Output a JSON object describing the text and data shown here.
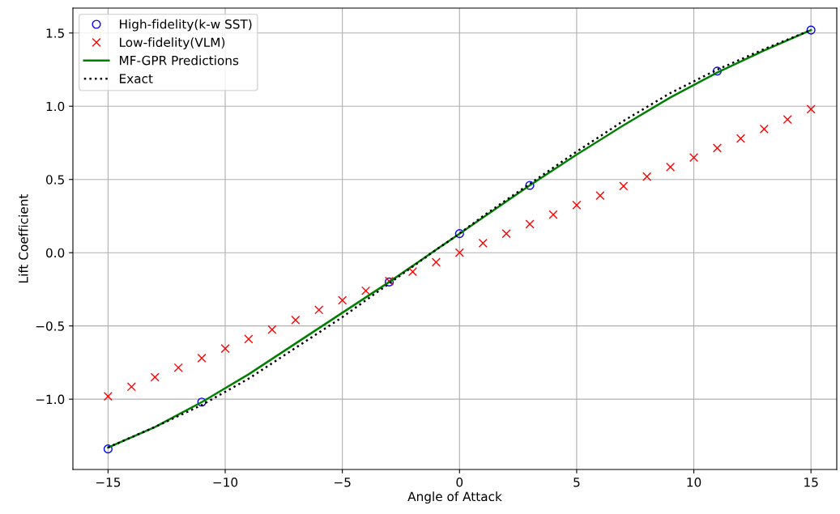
{
  "chart_data": {
    "type": "scatter",
    "xlabel": "Angle of Attack",
    "ylabel": "Lift Coefficient",
    "xlim": [
      -16.5,
      16.1
    ],
    "ylim": [
      -1.48,
      1.67
    ],
    "xticks": [
      {
        "value": -15,
        "label": "−15"
      },
      {
        "value": -10,
        "label": "−10"
      },
      {
        "value": -5,
        "label": "−5"
      },
      0,
      5,
      10,
      15
    ],
    "yticks": [
      {
        "value": -1.0,
        "label": "−1.0"
      },
      {
        "value": -0.5,
        "label": "−0.5"
      },
      {
        "value": 0.0,
        "label": "0.0"
      },
      {
        "value": 0.5,
        "label": "0.5"
      },
      {
        "value": 1.0,
        "label": "1.0"
      },
      {
        "value": 1.5,
        "label": "1.5"
      }
    ],
    "grid": true,
    "legend": "top left",
    "series": [
      {
        "name": "High-fidelity(k-w SST)",
        "marker": "circle",
        "color": "#0000ff",
        "x": [
          -15,
          -11,
          -3,
          0,
          3,
          11,
          15
        ],
        "values": [
          -1.34,
          -1.02,
          -0.2,
          0.13,
          0.46,
          1.24,
          1.52
        ]
      },
      {
        "name": "Low-fidelity(VLM)",
        "marker": "cross",
        "color": "#ff0000",
        "x": [
          -15,
          -14,
          -13,
          -12,
          -11,
          -10,
          -9,
          -8,
          -7,
          -6,
          -5,
          -4,
          -3,
          -2,
          -1,
          0,
          1,
          2,
          3,
          4,
          5,
          6,
          7,
          8,
          9,
          10,
          11,
          12,
          13,
          14,
          15
        ],
        "values": [
          -0.98,
          -0.915,
          -0.85,
          -0.785,
          -0.72,
          -0.655,
          -0.59,
          -0.525,
          -0.46,
          -0.39,
          -0.325,
          -0.26,
          -0.195,
          -0.13,
          -0.065,
          0.0,
          0.065,
          0.13,
          0.195,
          0.26,
          0.325,
          0.39,
          0.455,
          0.52,
          0.585,
          0.65,
          0.715,
          0.78,
          0.845,
          0.91,
          0.98
        ]
      },
      {
        "name": "MF-GPR Predictions",
        "type": "line",
        "line_style": "solid",
        "color": "#008000",
        "x": [
          -15,
          -13,
          -11,
          -9,
          -7,
          -5,
          -3,
          -1,
          0,
          1,
          3,
          5,
          7,
          9,
          11,
          13,
          15
        ],
        "values": [
          -1.33,
          -1.19,
          -1.02,
          -0.83,
          -0.62,
          -0.41,
          -0.2,
          0.02,
          0.13,
          0.24,
          0.46,
          0.67,
          0.87,
          1.06,
          1.23,
          1.38,
          1.52
        ]
      },
      {
        "name": "Exact",
        "type": "line",
        "line_style": "dotted",
        "color": "#000000",
        "x": [
          -15,
          -13,
          -11,
          -9,
          -7,
          -5,
          -3,
          -1,
          0,
          1,
          3,
          5,
          7,
          9,
          11,
          13,
          15
        ],
        "values": [
          -1.33,
          -1.19,
          -1.04,
          -0.86,
          -0.65,
          -0.44,
          -0.21,
          0.02,
          0.13,
          0.25,
          0.47,
          0.69,
          0.9,
          1.09,
          1.25,
          1.39,
          1.52
        ]
      }
    ]
  }
}
